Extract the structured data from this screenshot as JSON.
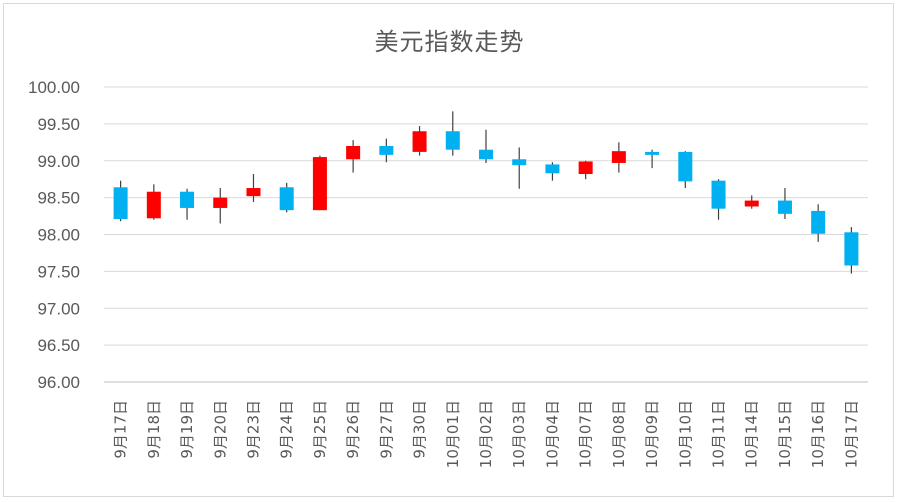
{
  "chart_data": {
    "type": "candlestick",
    "title": "美元指数走势",
    "xlabel": "",
    "ylabel": "",
    "ylim": [
      96.0,
      100.0
    ],
    "yticks": [
      "96.00",
      "96.50",
      "97.00",
      "97.50",
      "98.00",
      "98.50",
      "99.00",
      "99.50",
      "100.00"
    ],
    "grid": true,
    "legend": "none",
    "colors": {
      "up": "#ff0000",
      "down": "#00b0f0",
      "wick": "#404040",
      "grid": "#d9d9d9",
      "axis": "#bfbfbf"
    },
    "categories": [
      "9月17日",
      "9月18日",
      "9月19日",
      "9月20日",
      "9月23日",
      "9月24日",
      "9月25日",
      "9月26日",
      "9月27日",
      "9月30日",
      "10月01日",
      "10月02日",
      "10月03日",
      "10月04日",
      "10月07日",
      "10月08日",
      "10月09日",
      "10月10日",
      "10月11日",
      "10月14日",
      "10月15日",
      "10月16日",
      "10月17日"
    ],
    "open": [
      98.64,
      98.22,
      98.58,
      98.36,
      98.52,
      98.64,
      98.33,
      99.02,
      99.2,
      99.12,
      99.4,
      99.15,
      99.02,
      98.95,
      98.82,
      98.97,
      99.12,
      99.12,
      98.73,
      98.38,
      98.46,
      98.32,
      98.03
    ],
    "close": [
      98.21,
      98.58,
      98.36,
      98.5,
      98.63,
      98.33,
      99.05,
      99.2,
      99.08,
      99.4,
      99.15,
      99.02,
      98.94,
      98.83,
      98.99,
      99.13,
      99.08,
      98.72,
      98.35,
      98.46,
      98.28,
      98.01,
      97.58
    ],
    "high": [
      98.73,
      98.68,
      98.62,
      98.63,
      98.82,
      98.7,
      99.07,
      99.28,
      99.3,
      99.47,
      99.67,
      99.42,
      99.18,
      98.98,
      99.0,
      99.25,
      99.15,
      99.13,
      98.75,
      98.53,
      98.63,
      98.41,
      98.1
    ],
    "low": [
      98.18,
      98.2,
      98.2,
      98.15,
      98.44,
      98.3,
      98.33,
      98.84,
      98.98,
      99.07,
      99.07,
      98.97,
      98.62,
      98.73,
      98.75,
      98.84,
      98.9,
      98.63,
      98.2,
      98.35,
      98.21,
      97.9,
      97.47
    ]
  }
}
